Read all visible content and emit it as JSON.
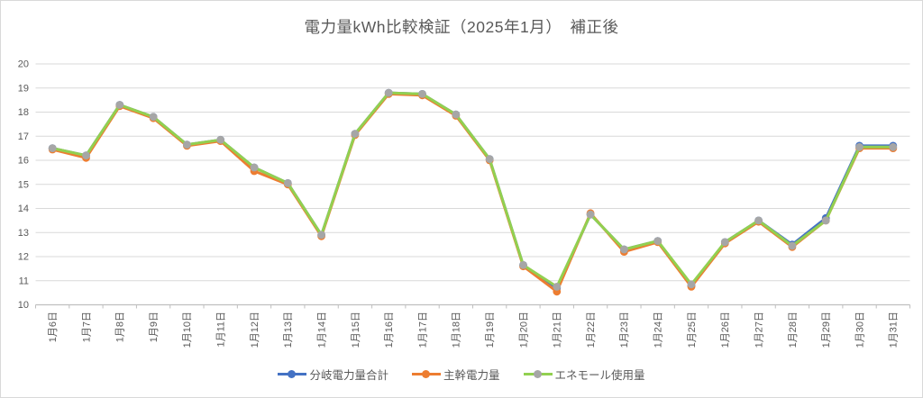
{
  "chart_data": {
    "type": "line",
    "title": "電力量kWh比較検証（2025年1月）　補正後",
    "categories": [
      "1月6日",
      "1月7日",
      "1月8日",
      "1月9日",
      "1月10日",
      "1月11日",
      "1月12日",
      "1月13日",
      "1月14日",
      "1月15日",
      "1月16日",
      "1月17日",
      "1月18日",
      "1月19日",
      "1月20日",
      "1月21日",
      "1月22日",
      "1月23日",
      "1月24日",
      "1月25日",
      "1月26日",
      "1月27日",
      "1月28日",
      "1月29日",
      "1月30日",
      "1月31日"
    ],
    "series": [
      {
        "name": "分岐電力量合計",
        "color": "#4472C4",
        "marker_color": "#4472C4",
        "values": [
          16.5,
          16.2,
          18.3,
          17.8,
          16.65,
          16.85,
          15.7,
          15.05,
          12.9,
          17.1,
          18.8,
          18.75,
          17.9,
          16.05,
          11.65,
          10.7,
          13.75,
          12.3,
          12.65,
          10.8,
          12.6,
          13.5,
          12.5,
          13.6,
          16.6,
          16.6
        ]
      },
      {
        "name": "主幹電力量",
        "color": "#ED7D31",
        "marker_color": "#ED7D31",
        "values": [
          16.45,
          16.1,
          18.25,
          17.75,
          16.6,
          16.8,
          15.55,
          15.0,
          12.85,
          17.05,
          18.75,
          18.7,
          17.85,
          16.0,
          11.6,
          10.55,
          13.8,
          12.2,
          12.6,
          10.75,
          12.55,
          13.45,
          12.4,
          13.5,
          16.5,
          16.5
        ]
      },
      {
        "name": "エネモール使用量",
        "color": "#92D050",
        "marker_color": "#A6A6A6",
        "values": [
          16.5,
          16.2,
          18.3,
          17.8,
          16.65,
          16.85,
          15.7,
          15.05,
          12.9,
          17.1,
          18.8,
          18.75,
          17.9,
          16.05,
          11.65,
          10.75,
          13.75,
          12.3,
          12.65,
          10.85,
          12.6,
          13.5,
          12.45,
          13.5,
          16.55,
          16.55
        ]
      }
    ],
    "ylim": [
      10,
      20
    ],
    "ytick_interval": 1,
    "yticks": [
      "10",
      "11",
      "12",
      "13",
      "14",
      "15",
      "16",
      "17",
      "18",
      "19",
      "20"
    ],
    "xlabel": "",
    "ylabel": "",
    "grid": "horizontal",
    "legend_position": "bottom",
    "axis_text_color": "#595959",
    "gridline_color": "#D9D9D9",
    "axis_line_color": "#BFBFBF"
  }
}
